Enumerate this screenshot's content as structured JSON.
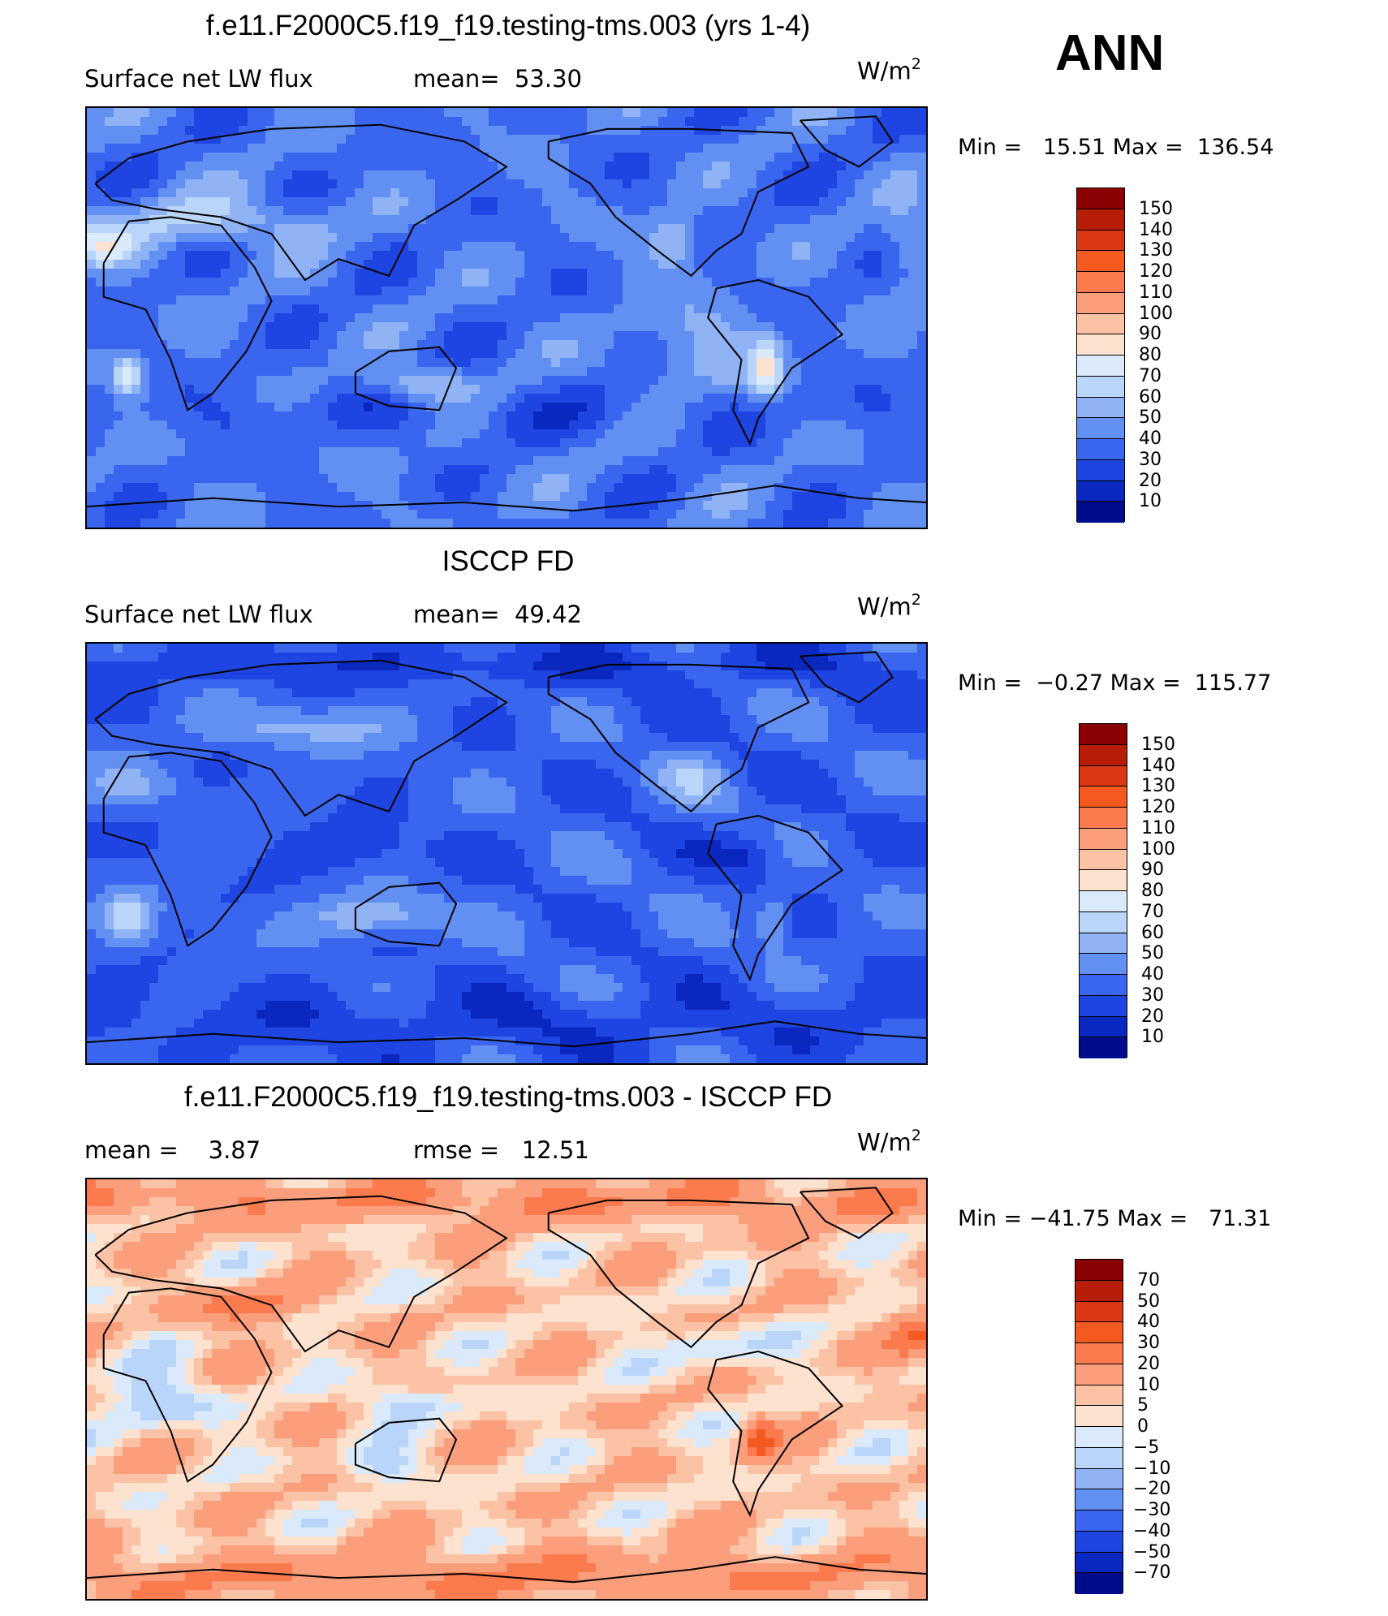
{
  "season": "ANN",
  "panels": [
    {
      "title": "f.e11.F2000C5.f19_f19.testing-tms.003 (yrs 1-4)",
      "left_label": "Surface net LW flux",
      "mid_label": "mean=  53.30",
      "units_base": "W/m",
      "units_exp": "2",
      "minmax": "Min =   15.51 Max =  136.54",
      "scale": "abs",
      "field": "model"
    },
    {
      "title": "ISCCP FD",
      "left_label": "Surface net LW flux",
      "mid_label": "mean=  49.42",
      "units_base": "W/m",
      "units_exp": "2",
      "minmax": "Min =  −0.27 Max =  115.77",
      "scale": "abs",
      "field": "obs"
    },
    {
      "title": "f.e11.F2000C5.f19_f19.testing-tms.003 - ISCCP FD",
      "left_label": "mean =    3.87",
      "mid_label": "rmse =   12.51",
      "units_base": "W/m",
      "units_exp": "2",
      "minmax": "Min = −41.75 Max =   71.31",
      "scale": "diff",
      "field": "diff"
    }
  ],
  "colorbars": {
    "abs": {
      "labels": [
        "150",
        "140",
        "130",
        "120",
        "110",
        "100",
        "90",
        "80",
        "70",
        "60",
        "50",
        "40",
        "30",
        "20",
        "10"
      ],
      "colors": [
        "#8b0000",
        "#b81d07",
        "#db3714",
        "#f4591f",
        "#fb7b4e",
        "#fb9e7c",
        "#fcc2a6",
        "#fde2cf",
        "#dbeafa",
        "#bad5fa",
        "#8fb3f5",
        "#628ff2",
        "#3a66ef",
        "#1e45e1",
        "#0a28c0",
        "#000d8a"
      ]
    },
    "diff": {
      "labels": [
        "70",
        "50",
        "40",
        "30",
        "20",
        "10",
        "5",
        "0",
        "−5",
        "−10",
        "−20",
        "−30",
        "−40",
        "−50",
        "−70"
      ],
      "colors": [
        "#8b0000",
        "#b81d07",
        "#db3714",
        "#f4591f",
        "#fb7b4e",
        "#fb9e7c",
        "#fcc2a6",
        "#fde2cf",
        "#dbeafa",
        "#bad5fa",
        "#8fb3f5",
        "#628ff2",
        "#3a66ef",
        "#1e45e1",
        "#0a28c0",
        "#000d8a"
      ]
    }
  },
  "chart_data": [
    {
      "type": "heatmap",
      "title": "f.e11.F2000C5.f19_f19.testing-tms.003 (yrs 1-4)",
      "variable": "Surface net LW flux",
      "units": "W/m2",
      "season": "ANN",
      "mean": 53.3,
      "min": 15.51,
      "max": 136.54,
      "levels": [
        10,
        20,
        30,
        40,
        50,
        60,
        70,
        80,
        90,
        100,
        110,
        120,
        130,
        140,
        150
      ]
    },
    {
      "type": "heatmap",
      "title": "ISCCP FD",
      "variable": "Surface net LW flux",
      "units": "W/m2",
      "mean": 49.42,
      "min": -0.27,
      "max": 115.77,
      "levels": [
        10,
        20,
        30,
        40,
        50,
        60,
        70,
        80,
        90,
        100,
        110,
        120,
        130,
        140,
        150
      ]
    },
    {
      "type": "heatmap",
      "title": "f.e11.F2000C5.f19_f19.testing-tms.003 - ISCCP FD",
      "units": "W/m2",
      "mean": 3.87,
      "rmse": 12.51,
      "min": -41.75,
      "max": 71.31,
      "levels": [
        -70,
        -50,
        -40,
        -30,
        -20,
        -10,
        -5,
        0,
        5,
        10,
        20,
        30,
        40,
        50,
        70
      ]
    }
  ]
}
